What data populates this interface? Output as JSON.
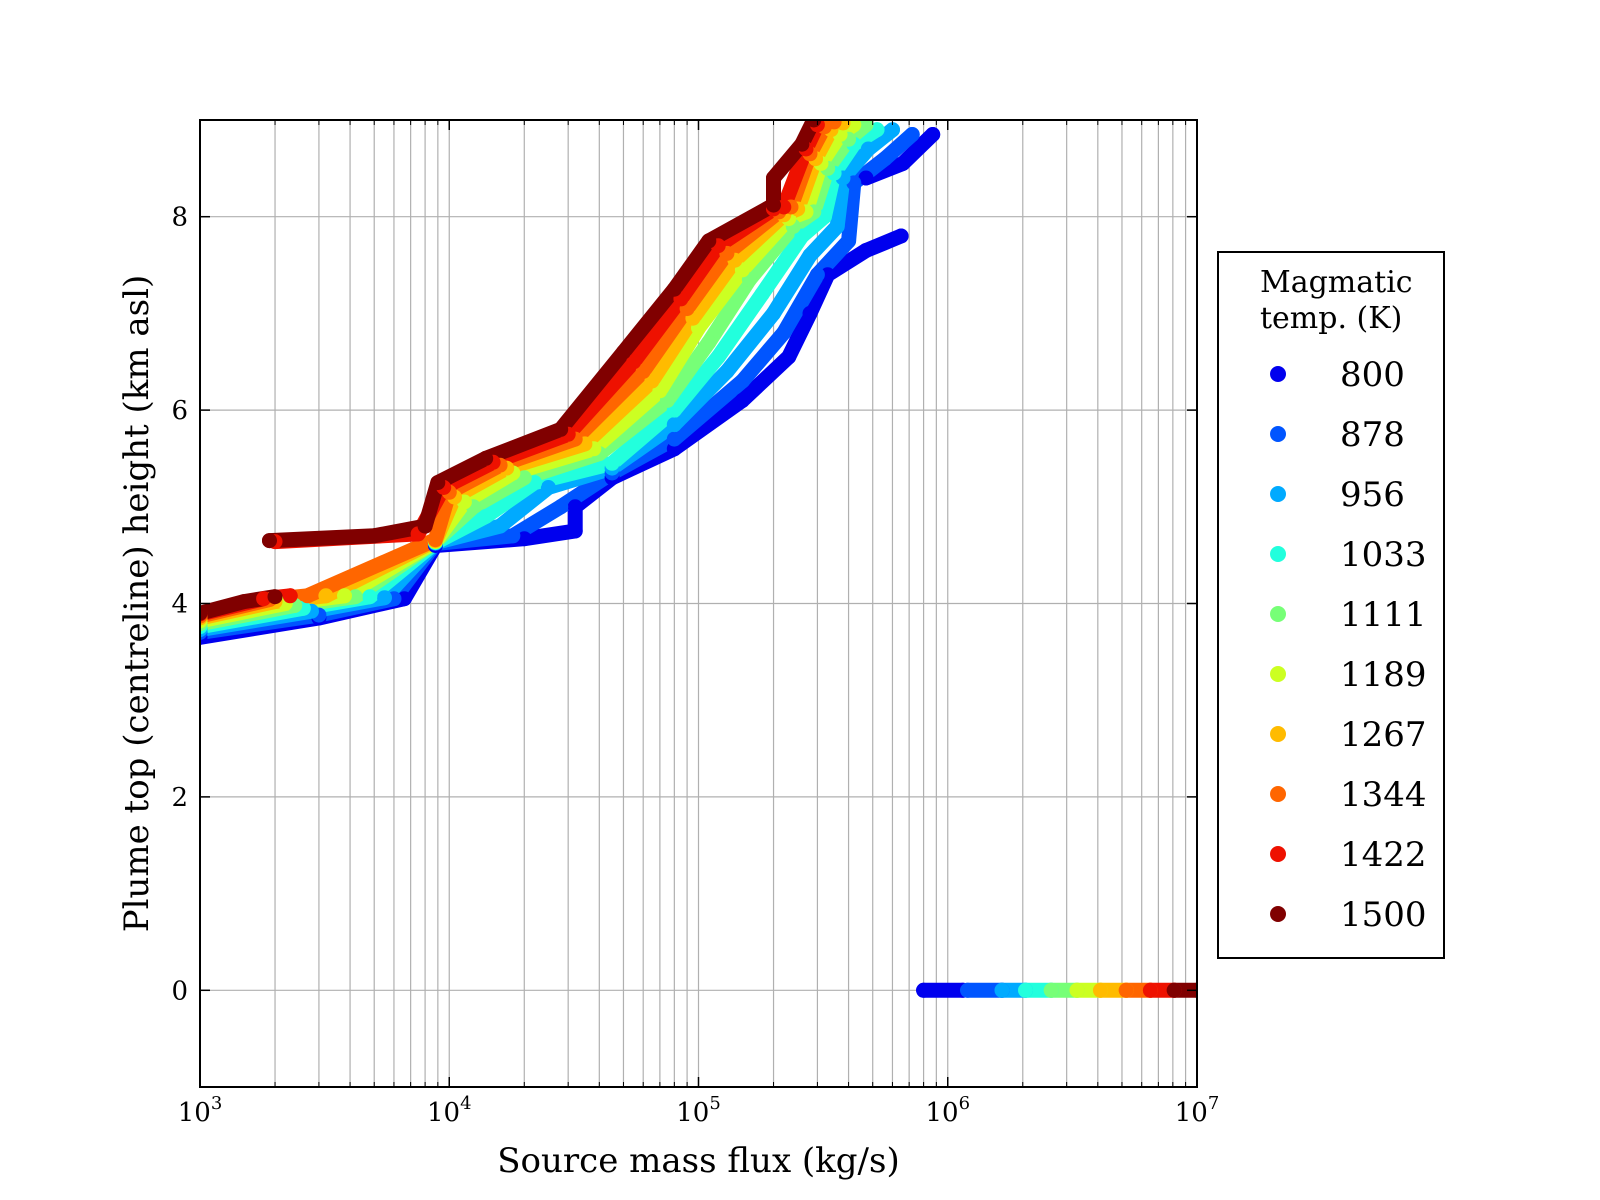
{
  "chart_data": {
    "type": "scatter",
    "xlabel": "Source mass flux (kg/s)",
    "ylabel": "Plume top (centreline) height (km asl)",
    "xscale": "log",
    "xlim": [
      1000,
      10000000
    ],
    "ylim": [
      -1,
      9
    ],
    "x_ticks": [
      {
        "value": 1000,
        "base": "10",
        "exp": "3"
      },
      {
        "value": 10000,
        "base": "10",
        "exp": "4"
      },
      {
        "value": 100000,
        "base": "10",
        "exp": "5"
      },
      {
        "value": 1000000,
        "base": "10",
        "exp": "6"
      },
      {
        "value": 10000000,
        "base": "10",
        "exp": "7"
      }
    ],
    "y_ticks": [
      {
        "value": 0,
        "label": "0"
      },
      {
        "value": 2,
        "label": "2"
      },
      {
        "value": 4,
        "label": "4"
      },
      {
        "value": 6,
        "label": "6"
      },
      {
        "value": 8,
        "label": "8"
      }
    ],
    "grid": true,
    "legend": {
      "title": "Magmatic\ntemp. (K)",
      "placement": "right"
    },
    "series": [
      {
        "name": "800",
        "color": "#0000ee",
        "points": [
          [
            1000,
            3.65
          ],
          [
            3000,
            3.85
          ],
          [
            6600,
            4.05
          ],
          [
            8800,
            4.6
          ],
          [
            20000,
            4.67
          ],
          [
            32000,
            4.75
          ],
          [
            32000,
            5.0
          ],
          [
            45000,
            5.3
          ],
          [
            80000,
            5.6
          ],
          [
            150000,
            6.1
          ],
          [
            230000,
            6.55
          ],
          [
            280000,
            7.0
          ],
          [
            330000,
            7.4
          ],
          [
            470000,
            7.65
          ],
          [
            650000,
            7.8
          ],
          [
            470000,
            8.4
          ],
          [
            660000,
            8.55
          ],
          [
            870000,
            8.85
          ],
          [
            800000,
            0.0
          ],
          [
            1150000,
            0.0
          ]
        ]
      },
      {
        "name": "878",
        "color": "#0055ff",
        "points": [
          [
            1000,
            3.7
          ],
          [
            3000,
            3.88
          ],
          [
            6000,
            4.05
          ],
          [
            8800,
            4.62
          ],
          [
            18000,
            4.7
          ],
          [
            28000,
            5.0
          ],
          [
            45000,
            5.35
          ],
          [
            80000,
            5.7
          ],
          [
            150000,
            6.3
          ],
          [
            220000,
            6.8
          ],
          [
            300000,
            7.4
          ],
          [
            400000,
            7.75
          ],
          [
            420000,
            8.35
          ],
          [
            560000,
            8.6
          ],
          [
            720000,
            8.85
          ],
          [
            1200000,
            0.0
          ],
          [
            1650000,
            0.0
          ]
        ]
      },
      {
        "name": "956",
        "color": "#00aaff",
        "points": [
          [
            1000,
            3.73
          ],
          [
            2800,
            3.92
          ],
          [
            5500,
            4.06
          ],
          [
            8800,
            4.63
          ],
          [
            16000,
            4.8
          ],
          [
            25000,
            5.2
          ],
          [
            45000,
            5.4
          ],
          [
            80000,
            5.85
          ],
          [
            130000,
            6.4
          ],
          [
            200000,
            7.0
          ],
          [
            280000,
            7.6
          ],
          [
            360000,
            7.9
          ],
          [
            380000,
            8.4
          ],
          [
            480000,
            8.7
          ],
          [
            600000,
            8.9
          ],
          [
            1650000,
            0.0
          ],
          [
            2050000,
            0.0
          ]
        ]
      },
      {
        "name": "1033",
        "color": "#22ffdd",
        "points": [
          [
            1000,
            3.76
          ],
          [
            2600,
            3.95
          ],
          [
            4800,
            4.07
          ],
          [
            8800,
            4.63
          ],
          [
            14000,
            4.9
          ],
          [
            22000,
            5.25
          ],
          [
            45000,
            5.45
          ],
          [
            80000,
            6.0
          ],
          [
            120000,
            6.55
          ],
          [
            180000,
            7.2
          ],
          [
            260000,
            7.8
          ],
          [
            320000,
            8.0
          ],
          [
            350000,
            8.45
          ],
          [
            420000,
            8.75
          ],
          [
            520000,
            8.9
          ],
          [
            2050000,
            0.0
          ],
          [
            2600000,
            0.0
          ]
        ]
      },
      {
        "name": "1111",
        "color": "#77ff77",
        "points": [
          [
            1000,
            3.79
          ],
          [
            2400,
            3.98
          ],
          [
            4200,
            4.07
          ],
          [
            8800,
            4.64
          ],
          [
            12500,
            5.0
          ],
          [
            20000,
            5.3
          ],
          [
            40000,
            5.55
          ],
          [
            75000,
            6.1
          ],
          [
            110000,
            6.7
          ],
          [
            160000,
            7.35
          ],
          [
            240000,
            7.9
          ],
          [
            290000,
            8.05
          ],
          [
            330000,
            8.5
          ],
          [
            400000,
            8.8
          ],
          [
            470000,
            8.95
          ],
          [
            2600000,
            0.0
          ],
          [
            3300000,
            0.0
          ]
        ]
      },
      {
        "name": "1189",
        "color": "#ccff22",
        "points": [
          [
            1000,
            3.82
          ],
          [
            2200,
            4.0
          ],
          [
            3800,
            4.08
          ],
          [
            8800,
            4.64
          ],
          [
            11500,
            5.05
          ],
          [
            18000,
            5.35
          ],
          [
            38000,
            5.6
          ],
          [
            70000,
            6.2
          ],
          [
            100000,
            6.85
          ],
          [
            150000,
            7.45
          ],
          [
            230000,
            7.98
          ],
          [
            270000,
            8.05
          ],
          [
            310000,
            8.55
          ],
          [
            370000,
            8.85
          ],
          [
            420000,
            8.95
          ],
          [
            3300000,
            0.0
          ],
          [
            4100000,
            0.0
          ]
        ]
      },
      {
        "name": "1267",
        "color": "#ffbb00",
        "points": [
          [
            1000,
            3.85
          ],
          [
            2000,
            4.02
          ],
          [
            3200,
            4.08
          ],
          [
            8800,
            4.65
          ],
          [
            10500,
            5.1
          ],
          [
            17000,
            5.4
          ],
          [
            35000,
            5.65
          ],
          [
            65000,
            6.3
          ],
          [
            95000,
            6.95
          ],
          [
            140000,
            7.55
          ],
          [
            220000,
            8.02
          ],
          [
            250000,
            8.08
          ],
          [
            295000,
            8.6
          ],
          [
            340000,
            8.9
          ],
          [
            380000,
            8.97
          ],
          [
            4100000,
            0.0
          ],
          [
            5200000,
            0.0
          ]
        ]
      },
      {
        "name": "1344",
        "color": "#ff6600",
        "points": [
          [
            1000,
            3.87
          ],
          [
            1900,
            4.04
          ],
          [
            2700,
            4.08
          ],
          [
            8800,
            4.66
          ],
          [
            10000,
            5.15
          ],
          [
            16000,
            5.43
          ],
          [
            32000,
            5.7
          ],
          [
            60000,
            6.4
          ],
          [
            90000,
            7.05
          ],
          [
            130000,
            7.62
          ],
          [
            210000,
            8.05
          ],
          [
            235000,
            8.1
          ],
          [
            280000,
            8.65
          ],
          [
            320000,
            8.93
          ],
          [
            350000,
            8.98
          ],
          [
            5200000,
            0.0
          ],
          [
            6500000,
            0.0
          ]
        ]
      },
      {
        "name": "1422",
        "color": "#ee1100",
        "points": [
          [
            1000,
            3.89
          ],
          [
            1800,
            4.05
          ],
          [
            2300,
            4.08
          ],
          [
            2000,
            4.64
          ],
          [
            7500,
            4.72
          ],
          [
            9500,
            5.2
          ],
          [
            15000,
            5.46
          ],
          [
            30000,
            5.75
          ],
          [
            55000,
            6.5
          ],
          [
            85000,
            7.15
          ],
          [
            120000,
            7.7
          ],
          [
            200000,
            8.08
          ],
          [
            220000,
            8.1
          ],
          [
            270000,
            8.7
          ],
          [
            300000,
            8.95
          ],
          [
            6500000,
            0.0
          ],
          [
            8100000,
            0.0
          ]
        ]
      },
      {
        "name": "1500",
        "color": "#800000",
        "points": [
          [
            1000,
            3.9
          ],
          [
            1500,
            4.02
          ],
          [
            2000,
            4.07
          ],
          [
            1900,
            4.65
          ],
          [
            5000,
            4.7
          ],
          [
            8000,
            4.8
          ],
          [
            9000,
            5.25
          ],
          [
            14000,
            5.5
          ],
          [
            28000,
            5.8
          ],
          [
            50000,
            6.6
          ],
          [
            80000,
            7.25
          ],
          [
            110000,
            7.75
          ],
          [
            200000,
            8.12
          ],
          [
            200000,
            8.4
          ],
          [
            260000,
            8.75
          ],
          [
            290000,
            9.0
          ],
          [
            8100000,
            0.0
          ],
          [
            10000000,
            0.0
          ]
        ]
      }
    ]
  }
}
